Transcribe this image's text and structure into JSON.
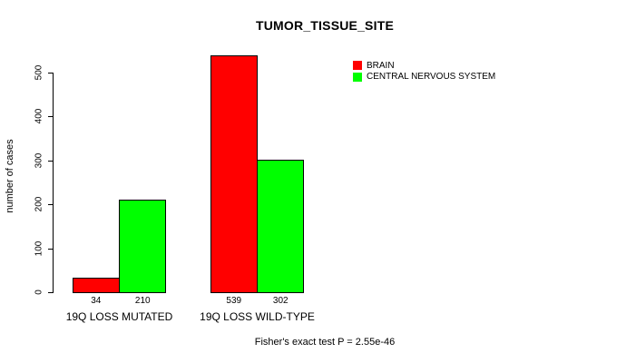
{
  "chart_data": {
    "type": "bar",
    "title": "TUMOR_TISSUE_SITE",
    "ylabel": "number of cases",
    "xlabel": "",
    "categories": [
      "19Q LOSS MUTATED",
      "19Q LOSS WILD-TYPE"
    ],
    "series": [
      {
        "name": "BRAIN",
        "color": "#FF0000",
        "values": [
          34,
          539
        ]
      },
      {
        "name": "CENTRAL NERVOUS SYSTEM",
        "color": "#00FF00",
        "values": [
          210,
          302
        ]
      }
    ],
    "ylim": [
      0,
      500
    ],
    "yticks": [
      0,
      100,
      200,
      300,
      400,
      500
    ],
    "grid": false,
    "legend_position": "top-right",
    "legend_border": false,
    "footnote": "Fisher's exact test P = 2.55e-46"
  },
  "colors": {
    "background": "#FFFFFF",
    "axis": "#000000",
    "bar_border": "#000000",
    "text": "#000000",
    "brain": "#FF0000",
    "central_nervous_system": "#00FF00"
  }
}
